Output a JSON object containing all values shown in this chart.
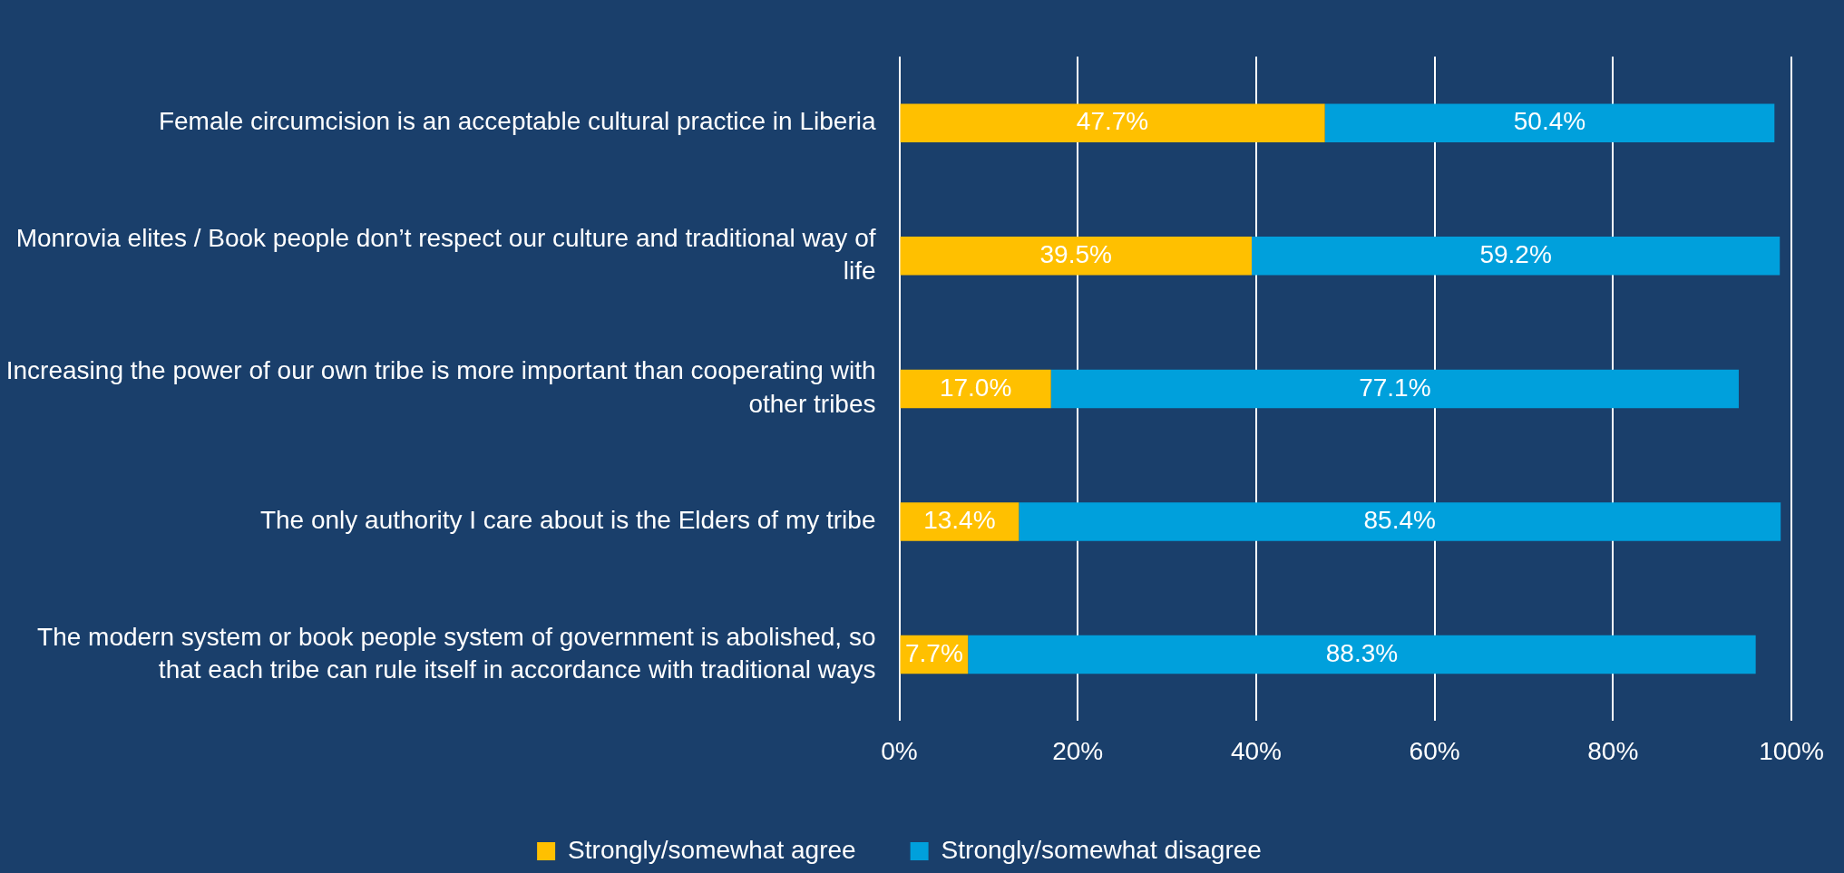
{
  "chart_data": {
    "type": "bar",
    "orientation": "horizontal",
    "stacked": true,
    "categories": [
      "Female circumcision is an acceptable cultural practice in Liberia",
      "Monrovia elites / Book people don’t respect our culture and traditional way of life",
      "Increasing the power of our own tribe is more important than cooperating with other tribes",
      "The only authority I care about is the Elders of my tribe",
      "The modern system or book people system of government is abolished, so that each tribe can rule itself in accordance with traditional ways"
    ],
    "series": [
      {
        "name": "Strongly/somewhat agree",
        "color": "#ffc000",
        "values": [
          47.7,
          39.5,
          17.0,
          13.4,
          7.7
        ],
        "value_labels": [
          "47.7%",
          "39.5%",
          "17.0%",
          "13.4%",
          "7.7%"
        ]
      },
      {
        "name": "Strongly/somewhat disagree",
        "color": "#00a0dc",
        "values": [
          50.4,
          59.2,
          77.1,
          85.4,
          88.3
        ],
        "value_labels": [
          "50.4%",
          "59.2%",
          "77.1%",
          "85.4%",
          "88.3%"
        ]
      }
    ],
    "xlim": [
      0,
      100
    ],
    "xticks": [
      {
        "value": 0,
        "label": "0%"
      },
      {
        "value": 20,
        "label": "20%"
      },
      {
        "value": 40,
        "label": "40%"
      },
      {
        "value": 60,
        "label": "60%"
      },
      {
        "value": 80,
        "label": "80%"
      },
      {
        "value": 100,
        "label": "100%"
      }
    ],
    "grid": "x",
    "legend": "bottom"
  }
}
